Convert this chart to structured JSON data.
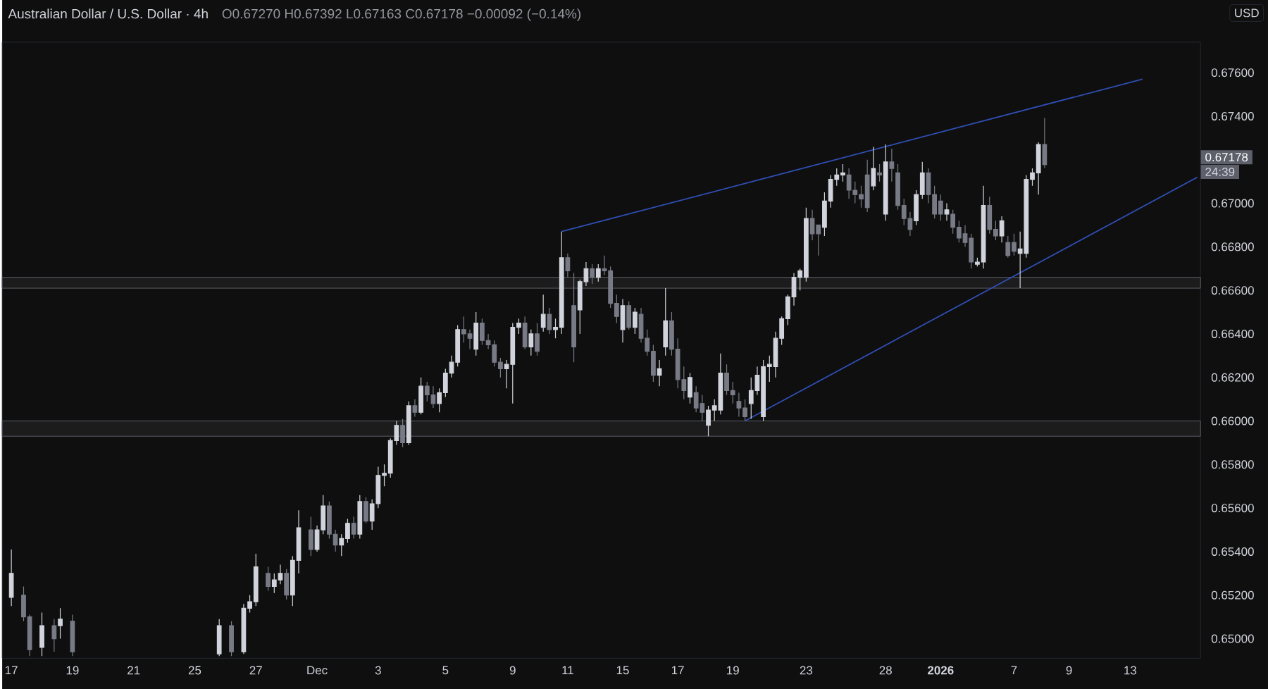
{
  "chart_data": {
    "type": "candlestick",
    "title": "Australian Dollar / U.S. Dollar · 4h",
    "subtitle": "O0.67270 H0.67392 L0.67163 C0.67178 −0.00092 (−0.14%)",
    "ylabel": "USD",
    "annotations": [
      "0.67178",
      "24:39"
    ],
    "categories": [
      "17",
      null,
      null,
      null,
      null,
      null,
      null,
      null,
      null,
      null,
      "19",
      null,
      null,
      null,
      null,
      null,
      null,
      null,
      null,
      null,
      "21",
      null,
      null,
      null,
      null,
      null,
      null,
      null,
      null,
      null,
      "25",
      null,
      null,
      null,
      null,
      null,
      null,
      null,
      null,
      null,
      "27",
      null,
      null,
      null,
      null,
      null,
      null,
      null,
      null,
      null,
      "Dec",
      null,
      null,
      null,
      null,
      null,
      null,
      null,
      null,
      null,
      "3",
      null,
      null,
      null,
      null,
      null,
      null,
      null,
      null,
      null,
      null,
      "5",
      null,
      null,
      null,
      null,
      null,
      null,
      null,
      null,
      null,
      null,
      "9",
      null,
      null,
      null,
      null,
      null,
      null,
      null,
      null,
      "11",
      null,
      null,
      null,
      null,
      null,
      null,
      null,
      null,
      "15",
      null,
      null,
      null,
      null,
      null,
      null,
      null,
      null,
      "17",
      null,
      null,
      null,
      null,
      null,
      null,
      null,
      null,
      "19",
      null,
      null,
      null,
      null,
      null,
      null,
      null,
      null,
      null,
      null,
      null,
      "23",
      null,
      null,
      null,
      null,
      null,
      null,
      null,
      null,
      null,
      null,
      null,
      null,
      "28",
      null,
      null,
      null,
      null,
      null,
      null,
      null,
      null,
      "**2026**",
      null,
      null,
      null,
      null,
      null,
      null,
      null,
      null,
      null,
      null,
      null,
      "7",
      null,
      null,
      null,
      null,
      null,
      null,
      null,
      null,
      "9",
      null,
      null,
      null,
      null,
      null,
      null,
      null,
      null,
      null,
      "13",
      null,
      null,
      null,
      null,
      null,
      null,
      null,
      null,
      null,
      null,
      null
    ],
    "ohlc": [
      [
        0.6519,
        0.6541,
        0.6515,
        0.653
      ],
      null,
      [
        0.652,
        0.6524,
        0.6508,
        0.651
      ],
      [
        0.651,
        0.6511,
        0.6492,
        0.6495
      ],
      null,
      [
        0.6496,
        0.6512,
        0.6492,
        0.6506
      ],
      null,
      [
        0.6506,
        0.6509,
        0.6494,
        0.65
      ],
      [
        0.6506,
        0.6514,
        0.65,
        0.6509
      ],
      null,
      [
        0.6508,
        0.6511,
        0.6492,
        0.6494
      ],
      null,
      null,
      null,
      null,
      null,
      null,
      null,
      null,
      null,
      null,
      null,
      null,
      null,
      null,
      null,
      null,
      null,
      null,
      null,
      null,
      null,
      null,
      null,
      [
        0.6493,
        0.6509,
        0.6492,
        0.6506
      ],
      null,
      [
        0.6506,
        0.6508,
        0.6492,
        0.6494
      ],
      null,
      [
        0.6494,
        0.6516,
        0.6493,
        0.6514
      ],
      [
        0.6514,
        0.652,
        0.6512,
        0.6517
      ],
      [
        0.6517,
        0.6539,
        0.6515,
        0.6533
      ],
      null,
      [
        0.653,
        0.6533,
        0.6522,
        0.6524
      ],
      [
        0.6524,
        0.653,
        0.6521,
        0.6527
      ],
      [
        0.6527,
        0.6534,
        0.6525,
        0.653
      ],
      [
        0.653,
        0.6532,
        0.6518,
        0.652
      ],
      [
        0.652,
        0.6538,
        0.6515,
        0.6536
      ],
      [
        0.6536,
        0.6559,
        0.653,
        0.6551
      ],
      null,
      [
        0.655,
        0.6556,
        0.6538,
        0.6541
      ],
      [
        0.6541,
        0.6552,
        0.654,
        0.655
      ],
      [
        0.655,
        0.6566,
        0.6548,
        0.6561
      ],
      [
        0.6561,
        0.6563,
        0.6546,
        0.6548
      ],
      [
        0.6548,
        0.655,
        0.654,
        0.6543
      ],
      [
        0.6543,
        0.6548,
        0.6538,
        0.6546
      ],
      [
        0.6546,
        0.6555,
        0.6544,
        0.6553
      ],
      [
        0.6553,
        0.6556,
        0.6546,
        0.6548
      ],
      [
        0.6548,
        0.6566,
        0.6546,
        0.6563
      ],
      [
        0.6563,
        0.6565,
        0.6553,
        0.6554
      ],
      [
        0.6554,
        0.6564,
        0.655,
        0.6562
      ],
      [
        0.6562,
        0.6579,
        0.656,
        0.6575
      ],
      [
        0.6575,
        0.658,
        0.657,
        0.6576
      ],
      [
        0.6576,
        0.6592,
        0.6574,
        0.6591
      ],
      [
        0.6591,
        0.66,
        0.6589,
        0.6598
      ],
      [
        0.6598,
        0.6601,
        0.6588,
        0.659
      ],
      [
        0.659,
        0.6609,
        0.6589,
        0.6607
      ],
      [
        0.6607,
        0.661,
        0.6602,
        0.6604
      ],
      [
        0.6604,
        0.662,
        0.6603,
        0.6616
      ],
      [
        0.6616,
        0.6618,
        0.6609,
        0.6612
      ],
      [
        0.6612,
        0.6616,
        0.6606,
        0.6608
      ],
      [
        0.6608,
        0.6615,
        0.6604,
        0.6613
      ],
      [
        0.6613,
        0.6624,
        0.6611,
        0.6622
      ],
      [
        0.6622,
        0.663,
        0.662,
        0.6627
      ],
      [
        0.6627,
        0.6644,
        0.6625,
        0.6642
      ],
      [
        0.6642,
        0.6648,
        0.6636,
        0.664
      ],
      [
        0.664,
        0.6642,
        0.6633,
        0.6638
      ],
      [
        0.6633,
        0.665,
        0.663,
        0.6645
      ],
      [
        0.6645,
        0.6647,
        0.6635,
        0.6637
      ],
      [
        0.6637,
        0.664,
        0.6633,
        0.6635
      ],
      [
        0.6635,
        0.6637,
        0.6625,
        0.6627
      ],
      [
        0.6627,
        0.6629,
        0.662,
        0.6624
      ],
      [
        0.6624,
        0.6628,
        0.6615,
        0.6626
      ],
      [
        0.6626,
        0.6645,
        0.6608,
        0.6643
      ],
      [
        0.6643,
        0.6647,
        0.664,
        0.6645
      ],
      [
        0.6645,
        0.6648,
        0.6633,
        0.6634
      ],
      [
        0.6634,
        0.6642,
        0.663,
        0.664
      ],
      [
        0.664,
        0.6645,
        0.663,
        0.6632
      ],
      [
        0.6643,
        0.6658,
        0.6641,
        0.6649
      ],
      [
        0.6649,
        0.6652,
        0.664,
        0.6642
      ],
      [
        0.6642,
        0.6647,
        0.6638,
        0.6643
      ],
      [
        0.6643,
        0.6687,
        0.664,
        0.6675
      ],
      [
        0.6675,
        0.6677,
        0.6666,
        0.6669
      ],
      [
        0.6653,
        0.6668,
        0.6627,
        0.6634
      ],
      [
        0.6651,
        0.6665,
        0.664,
        0.6664
      ],
      [
        0.6664,
        0.6673,
        0.6662,
        0.667
      ],
      [
        0.667,
        0.6672,
        0.6663,
        0.6666
      ],
      [
        0.6666,
        0.6672,
        0.6664,
        0.667
      ],
      [
        0.667,
        0.6676,
        0.6667,
        0.6669
      ],
      [
        0.6669,
        0.6671,
        0.6652,
        0.6654
      ],
      [
        0.6654,
        0.6658,
        0.6645,
        0.6648
      ],
      [
        0.6642,
        0.6656,
        0.6636,
        0.6653
      ],
      [
        0.6653,
        0.6655,
        0.6642,
        0.6643
      ],
      [
        0.6643,
        0.6652,
        0.664,
        0.665
      ],
      [
        0.6649,
        0.6652,
        0.6636,
        0.6638
      ],
      [
        0.6638,
        0.6642,
        0.663,
        0.6632
      ],
      [
        0.6632,
        0.6635,
        0.6618,
        0.6621
      ],
      [
        0.6621,
        0.6628,
        0.6616,
        0.6624
      ],
      [
        0.6634,
        0.6661,
        0.663,
        0.6646
      ],
      [
        0.6646,
        0.665,
        0.663,
        0.6633
      ],
      [
        0.6633,
        0.6638,
        0.6615,
        0.6619
      ],
      [
        0.6619,
        0.6625,
        0.661,
        0.6614
      ],
      [
        0.6611,
        0.6622,
        0.6608,
        0.662
      ],
      [
        0.6613,
        0.6616,
        0.6604,
        0.6606
      ],
      [
        0.6608,
        0.6612,
        0.66,
        0.6604
      ],
      [
        0.6598,
        0.6607,
        0.6593,
        0.6605
      ],
      [
        0.6605,
        0.661,
        0.66,
        0.6607
      ],
      [
        0.6605,
        0.6631,
        0.6603,
        0.6622
      ],
      [
        0.6622,
        0.6626,
        0.6612,
        0.6614
      ],
      [
        0.6614,
        0.6618,
        0.6608,
        0.6612
      ],
      [
        0.6609,
        0.6613,
        0.6602,
        0.6606
      ],
      [
        0.6606,
        0.661,
        0.66,
        0.6602
      ],
      [
        0.6608,
        0.662,
        0.6601,
        0.6614
      ],
      [
        0.6614,
        0.6625,
        0.6612,
        0.6621
      ],
      [
        0.6602,
        0.6628,
        0.66,
        0.6625
      ],
      [
        0.6625,
        0.663,
        0.6618,
        0.6626
      ],
      [
        0.6625,
        0.6641,
        0.662,
        0.6638
      ],
      [
        0.6638,
        0.6648,
        0.6635,
        0.6647
      ],
      [
        0.6647,
        0.6658,
        0.6644,
        0.6657
      ],
      [
        0.6657,
        0.6668,
        0.6653,
        0.6666
      ],
      [
        0.6666,
        0.667,
        0.666,
        0.6669
      ],
      [
        0.6666,
        0.6698,
        0.6664,
        0.6693
      ],
      [
        0.6693,
        0.6697,
        0.6683,
        0.6686
      ],
      [
        0.669,
        0.669,
        0.6676,
        0.6686
      ],
      [
        0.6689,
        0.6705,
        0.6685,
        0.6701
      ],
      [
        0.6701,
        0.6713,
        0.6698,
        0.6711
      ],
      [
        0.6711,
        0.6716,
        0.6708,
        0.6713
      ],
      [
        0.6713,
        0.6718,
        0.671,
        0.6714
      ],
      [
        0.6713,
        0.6716,
        0.6702,
        0.6706
      ],
      [
        0.6706,
        0.671,
        0.67,
        0.6704
      ],
      [
        0.6704,
        0.6708,
        0.6698,
        0.6702
      ],
      [
        0.6713,
        0.672,
        0.6696,
        0.6698
      ],
      [
        0.6708,
        0.6726,
        0.6706,
        0.6716
      ],
      [
        0.6714,
        0.6718,
        0.671,
        0.6713
      ],
      [
        0.6695,
        0.6727,
        0.6692,
        0.6719
      ],
      [
        0.6719,
        0.6725,
        0.671,
        0.6716
      ],
      [
        0.6714,
        0.6718,
        0.6697,
        0.6699
      ],
      [
        0.6699,
        0.6702,
        0.669,
        0.6693
      ],
      [
        0.6693,
        0.6696,
        0.6685,
        0.6688
      ],
      [
        0.6692,
        0.6706,
        0.669,
        0.6704
      ],
      [
        0.6704,
        0.6719,
        0.6702,
        0.6714
      ],
      [
        0.6714,
        0.6716,
        0.67,
        0.6704
      ],
      [
        0.6704,
        0.6708,
        0.6693,
        0.6695
      ],
      [
        0.6701,
        0.6704,
        0.6692,
        0.6695
      ],
      [
        0.6695,
        0.67,
        0.6692,
        0.6697
      ],
      [
        0.6695,
        0.6697,
        0.6686,
        0.6689
      ],
      [
        0.6689,
        0.6692,
        0.6682,
        0.6684
      ],
      [
        0.6686,
        0.669,
        0.668,
        0.6682
      ],
      [
        0.6684,
        0.6686,
        0.667,
        0.6673
      ],
      [
        0.6672,
        0.6675,
        0.6671,
        0.6673
      ],
      [
        0.6673,
        0.6708,
        0.667,
        0.6699
      ],
      [
        0.6699,
        0.6703,
        0.6686,
        0.6688
      ],
      [
        0.6688,
        0.6692,
        0.6683,
        0.6685
      ],
      [
        0.6685,
        0.6694,
        0.6682,
        0.6692
      ],
      [
        0.6682,
        0.6685,
        0.6675,
        0.6676
      ],
      [
        0.6682,
        0.6686,
        0.6676,
        0.6678
      ],
      [
        0.6677,
        0.6687,
        0.6661,
        0.6679
      ],
      [
        0.6677,
        0.6713,
        0.6675,
        0.6711
      ],
      [
        0.6711,
        0.6716,
        0.6708,
        0.6714
      ],
      [
        0.6714,
        0.6728,
        0.6704,
        0.6727
      ],
      [
        0.6727,
        0.67392,
        0.67163,
        0.67178
      ],
      null,
      null,
      null,
      null,
      null,
      null,
      null,
      null,
      null,
      null,
      null,
      null,
      null,
      null,
      null,
      null,
      null,
      null,
      null,
      null,
      null,
      null,
      null,
      null,
      null
    ],
    "colors": [
      "#d1d4dc",
      null,
      "#787b86",
      "#787b86",
      null,
      "#d1d4dc",
      null,
      "#787b86",
      "#d1d4dc",
      null,
      "#787b86",
      null,
      null,
      null,
      null,
      null,
      null,
      null,
      null,
      null,
      null,
      null,
      null,
      null,
      null,
      null,
      null,
      null,
      null,
      null,
      null,
      null,
      null,
      null,
      "#d1d4dc",
      null,
      "#787b86",
      null,
      "#d1d4dc",
      "#d1d4dc",
      "#d1d4dc",
      null,
      "#787b86",
      "#d1d4dc",
      "#d1d4dc",
      "#787b86",
      "#d1d4dc",
      "#d1d4dc",
      null,
      "#787b86",
      "#d1d4dc",
      "#d1d4dc",
      "#787b86",
      "#787b86",
      "#d1d4dc",
      "#d1d4dc",
      "#787b86",
      "#d1d4dc",
      "#787b86",
      "#d1d4dc",
      "#d1d4dc",
      "#d1d4dc",
      "#d1d4dc",
      "#d1d4dc",
      "#787b86",
      "#d1d4dc",
      "#787b86",
      "#d1d4dc",
      "#787b86",
      "#787b86",
      "#d1d4dc",
      "#d1d4dc",
      "#d1d4dc",
      "#d1d4dc",
      "#787b86",
      "#787b86",
      "#d1d4dc",
      "#787b86",
      "#787b86",
      "#787b86",
      "#787b86",
      "#d1d4dc",
      "#d1d4dc",
      "#d1d4dc",
      "#787b86",
      "#d1d4dc",
      "#787b86",
      "#d1d4dc",
      "#787b86",
      "#d1d4dc",
      "#d1d4dc",
      "#787b86",
      "#787b86",
      "#d1d4dc",
      "#d1d4dc",
      "#787b86",
      "#d1d4dc",
      "#787b86",
      "#787b86",
      "#787b86",
      "#d1d4dc",
      "#787b86",
      "#d1d4dc",
      "#787b86",
      "#787b86",
      "#787b86",
      "#d1d4dc",
      "#d1d4dc",
      "#787b86",
      "#787b86",
      "#787b86",
      "#d1d4dc",
      "#787b86",
      "#787b86",
      "#d1d4dc",
      "#d1d4dc",
      "#d1d4dc",
      "#787b86",
      "#787b86",
      "#787b86",
      "#787b86",
      "#d1d4dc",
      "#d1d4dc",
      "#d1d4dc",
      "#d1d4dc",
      "#d1d4dc",
      "#d1d4dc",
      "#d1d4dc",
      "#d1d4dc",
      "#d1d4dc",
      "#d1d4dc",
      "#787b86",
      "#787b86",
      "#d1d4dc",
      "#d1d4dc",
      "#d1d4dc",
      "#d1d4dc",
      "#787b86",
      "#787b86",
      "#787b86",
      "#787b86",
      "#d1d4dc",
      "#787b86",
      "#d1d4dc",
      "#787b86",
      "#787b86",
      "#787b86",
      "#787b86",
      "#d1d4dc",
      "#d1d4dc",
      "#787b86",
      "#787b86",
      "#787b86",
      "#d1d4dc",
      "#787b86",
      "#787b86",
      "#787b86",
      "#787b86",
      "#d1d4dc",
      "#d1d4dc",
      "#787b86",
      "#787b86",
      "#d1d4dc",
      "#787b86",
      "#787b86",
      "#d1d4dc",
      "#d1d4dc",
      "#d1d4dc",
      "#d1d4dc",
      "#787b86",
      null,
      null,
      null,
      null,
      null,
      null,
      null,
      null,
      null,
      null,
      null,
      null,
      null,
      null,
      null,
      null,
      null,
      null,
      null,
      null,
      null,
      null,
      null,
      null,
      null
    ],
    "series": [
      {
        "type": "line",
        "color": "#2f4fb5",
        "values": [
          null,
          null,
          null,
          null,
          null,
          null,
          null,
          null,
          null,
          null,
          null,
          null,
          null,
          null,
          null,
          null,
          null,
          null,
          null,
          null,
          null,
          null,
          null,
          null,
          null,
          null,
          null,
          null,
          null,
          null,
          null,
          null,
          null,
          null,
          null,
          null,
          null,
          null,
          null,
          null,
          null,
          null,
          null,
          null,
          null,
          null,
          null,
          null,
          null,
          null,
          null,
          null,
          null,
          null,
          null,
          null,
          null,
          null,
          null,
          null,
          null,
          null,
          null,
          null,
          null,
          null,
          null,
          null,
          null,
          null,
          null,
          null,
          null,
          null,
          null,
          null,
          null,
          null,
          null,
          null,
          null,
          null,
          null,
          null,
          null,
          null,
          null,
          null,
          null,
          null,
          0.6687,
          null,
          null,
          null,
          null,
          null,
          null,
          null,
          null,
          null,
          null,
          null,
          null,
          null,
          null,
          null,
          null,
          null,
          null,
          null,
          null,
          null,
          null,
          null,
          null,
          null,
          null,
          null,
          null,
          null,
          null,
          null,
          null,
          null,
          null,
          null,
          null,
          null,
          null,
          null,
          null,
          null,
          null,
          null,
          null,
          null,
          null,
          null,
          null,
          null,
          null,
          null,
          null,
          null,
          null,
          null,
          null,
          null,
          null,
          null,
          null,
          null,
          null,
          null,
          null,
          null,
          null,
          null,
          null,
          null,
          null,
          null,
          null,
          null,
          null,
          null,
          null,
          null,
          null,
          null,
          null,
          null,
          null,
          null,
          null,
          null,
          null,
          null,
          null,
          null,
          null,
          null,
          null,
          null,
          null,
          0.6757,
          null,
          null,
          null,
          null,
          null,
          null,
          null,
          null,
          null
        ]
      },
      {
        "type": "line",
        "color": "#2f4fb5",
        "values": [
          null,
          null,
          null,
          null,
          null,
          null,
          null,
          null,
          null,
          null,
          null,
          null,
          null,
          null,
          null,
          null,
          null,
          null,
          null,
          null,
          null,
          null,
          null,
          null,
          null,
          null,
          null,
          null,
          null,
          null,
          null,
          null,
          null,
          null,
          null,
          null,
          null,
          null,
          null,
          null,
          null,
          null,
          null,
          null,
          null,
          null,
          null,
          null,
          null,
          null,
          null,
          null,
          null,
          null,
          null,
          null,
          null,
          null,
          null,
          null,
          null,
          null,
          null,
          null,
          null,
          null,
          null,
          null,
          null,
          null,
          null,
          null,
          null,
          null,
          null,
          null,
          null,
          null,
          null,
          null,
          null,
          null,
          null,
          null,
          null,
          null,
          null,
          null,
          null,
          null,
          null,
          null,
          null,
          null,
          null,
          null,
          null,
          null,
          null,
          null,
          null,
          null,
          null,
          null,
          null,
          null,
          null,
          null,
          null,
          null,
          null,
          null,
          null,
          null,
          null,
          null,
          null,
          null,
          null,
          null,
          0.66,
          null,
          null,
          null,
          null,
          null,
          null,
          null,
          null,
          null,
          null,
          null,
          null,
          null,
          null,
          null,
          null,
          null,
          null,
          null,
          null,
          null,
          null,
          null,
          null,
          null,
          null,
          null,
          null,
          null,
          null,
          null,
          null,
          null,
          null,
          null,
          null,
          null,
          null,
          null,
          null,
          null,
          null,
          null,
          null,
          null,
          null,
          null,
          null,
          null,
          null,
          null,
          null,
          null,
          null,
          null,
          null,
          null,
          null,
          null,
          null,
          null,
          null,
          null,
          null,
          null,
          null,
          null,
          null,
          null,
          null,
          null,
          null,
          null,
          0.6712
        ]
      }
    ],
    "bands": [
      {
        "axis": "y",
        "from": 0.6661,
        "to": 0.6666,
        "color": "#1c1c1c"
      },
      {
        "axis": "y",
        "from": 0.6593,
        "to": 0.66,
        "color": "#1c1c1c"
      }
    ],
    "ylim": [
      0.6491,
      0.6774
    ],
    "yticks": [
      {
        "value": 0.65,
        "label": "0.65000"
      },
      {
        "value": 0.652,
        "label": "0.65200"
      },
      {
        "value": 0.654,
        "label": "0.65400"
      },
      {
        "value": 0.656,
        "label": "0.65600"
      },
      {
        "value": 0.658,
        "label": "0.65800"
      },
      {
        "value": 0.66,
        "label": "0.66000"
      },
      {
        "value": 0.662,
        "label": "0.66200"
      },
      {
        "value": 0.664,
        "label": "0.66400"
      },
      {
        "value": 0.666,
        "label": "0.66600"
      },
      {
        "value": 0.668,
        "label": "0.66800"
      },
      {
        "value": 0.67,
        "label": "0.67000"
      },
      {
        "value": 0.674,
        "label": "0.67400"
      },
      {
        "value": 0.676,
        "label": "0.67600"
      }
    ]
  }
}
